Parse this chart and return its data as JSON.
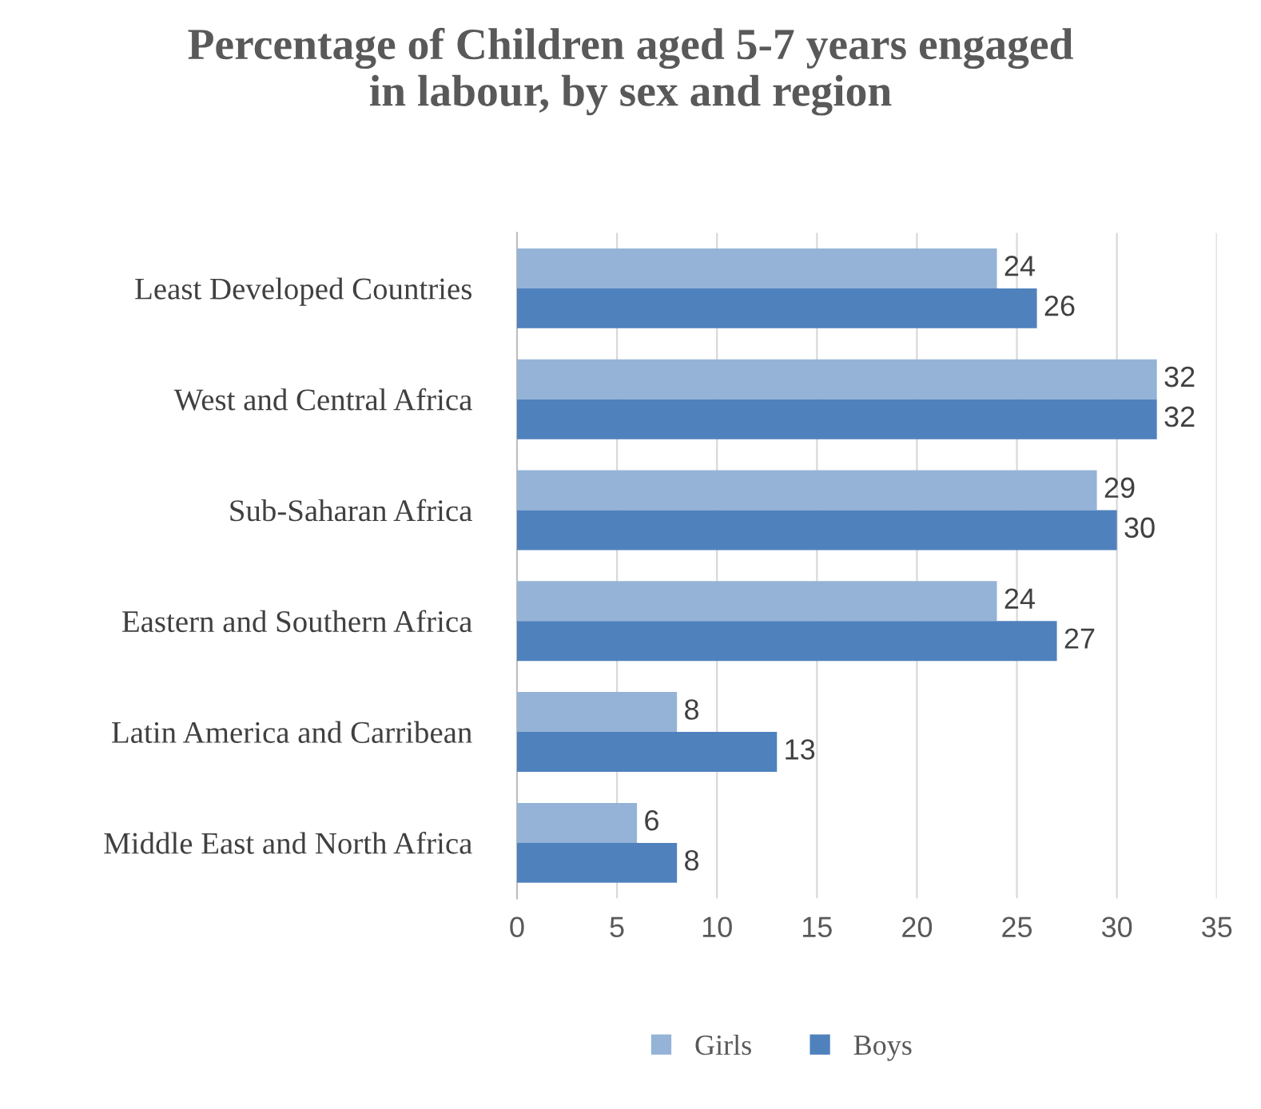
{
  "chart_data": {
    "type": "bar",
    "orientation": "horizontal",
    "title": "Percentage of Children aged 5-7 years engaged\nin labour, by sex and region",
    "categories": [
      "Least Developed Countries",
      "West and Central Africa",
      "Sub-Saharan Africa",
      "Eastern and Southern Africa",
      "Latin America and Carribean",
      "Middle East and North Africa"
    ],
    "series": [
      {
        "name": "Girls",
        "color": "#95b3d7",
        "values": [
          24,
          32,
          29,
          24,
          8,
          6
        ]
      },
      {
        "name": "Boys",
        "color": "#4f81bd",
        "values": [
          26,
          32,
          30,
          27,
          13,
          8
        ]
      }
    ],
    "xlim": [
      0,
      35
    ],
    "xticks": [
      0,
      5,
      10,
      15,
      20,
      25,
      30,
      35
    ],
    "grid": "x",
    "legend": "bottom",
    "data_labels": true
  }
}
